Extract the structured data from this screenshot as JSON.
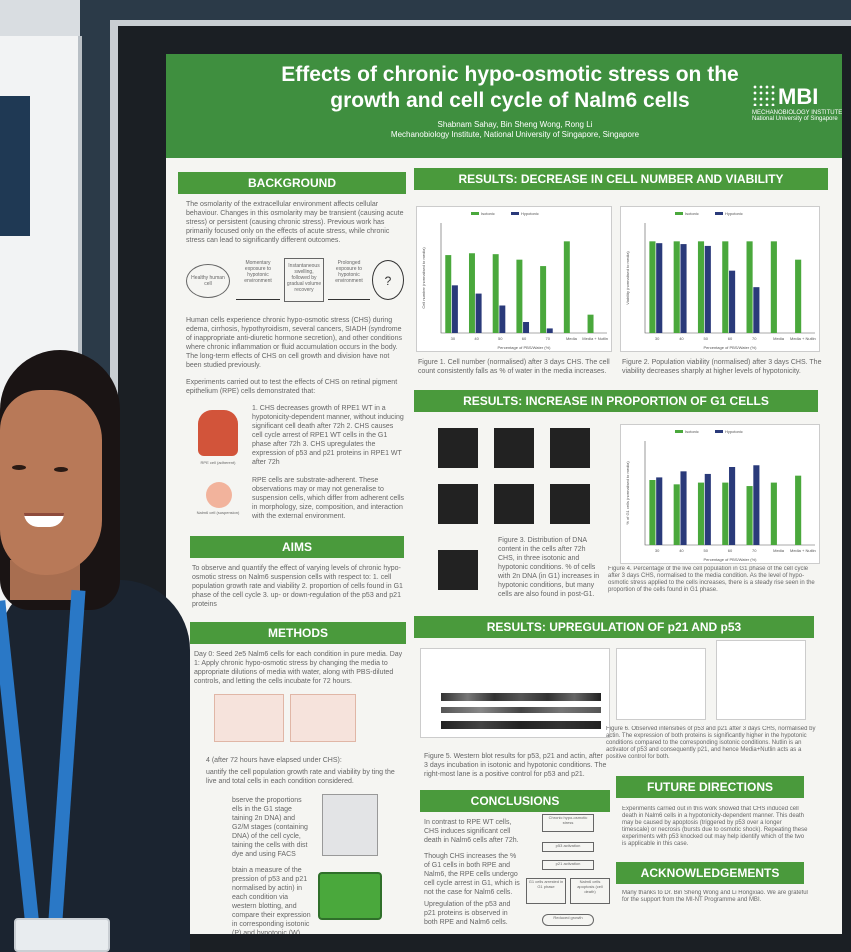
{
  "poster": {
    "title": "Effects of chronic hypo-osmotic stress on the growth and cell cycle of Nalm6 cells",
    "authors": "Shabnam Sahay, Bin Sheng Wong, Rong Li",
    "affiliation": "Mechanobiology Institute, National University of Singapore, Singapore",
    "logo": "MBI",
    "logo_subtitle": "MECHANOBIOLOGY INSTITUTE",
    "logo_university": "National University of Singapore",
    "colors": {
      "banner": "#3f8f3f",
      "header": "#4a9a3c",
      "poster_bg": "#f5f5f2",
      "bar_green": "#4aa83c",
      "bar_navy": "#2a3a7a"
    }
  },
  "sections": {
    "background": "BACKGROUND",
    "aims": "AIMS",
    "methods": "METHODS",
    "results1": "RESULTS: DECREASE IN CELL NUMBER AND VIABILITY",
    "results2": "RESULTS: INCREASE IN PROPORTION OF G1 CELLS",
    "results3": "RESULTS: UPREGULATION OF p21 AND p53",
    "conclusions": "CONCLUSIONS",
    "future": "FUTURE DIRECTIONS",
    "acknowledgements": "ACKNOWLEDGEMENTS"
  },
  "text": {
    "bg1": "The osmolarity of the extracellular environment affects cellular behaviour. Changes in this osmolarity may be transient (causing acute stress) or persistent (causing chronic stress). Previous work has primarily focused only on the effects of acute stress, while chronic stress can lead to significantly different outcomes.",
    "bg2": "Human cells experience chronic hypo-osmotic stress (CHS) during edema, cirrhosis, hypothyroidism, several cancers, SIADH (syndrome of inappropriate anti-diuretic hormone secretion), and other conditions where chronic inflammation or fluid accumulation occurs in the body. The long-term effects of CHS on cell growth and division have not been studied previously.",
    "bg3": "Experiments carried out to test the effects of CHS on retinal pigment epithelium (RPE) cells demonstrated that:",
    "bg_list": "1. CHS decreases growth of RPE1 WT in a hypotonicity-dependent manner, without inducing significant cell death after 72h 2. CHS causes cell cycle arrest of RPE1 WT cells in the G1 phase after 72h 3. CHS upregulates the expression of p53 and p21 proteins in RPE1 WT after 72h",
    "bg4": "RPE cells are substrate-adherent. These observations may or may not generalise to suspension cells, which differ from adherent cells in morphology, size, composition, and interaction with the external environment.",
    "aims": "To observe and quantify the effect of varying levels of chronic hypo-osmotic stress on Nalm6 suspension cells with respect to: 1. cell population growth rate and viability 2. proportion of cells found in G1 phase of the cell cycle 3. up- or down-regulation of the p53 and p21 proteins",
    "methods1": "Day 0: Seed 2e5 Nalm6 cells for each condition in pure media. Day 1: Apply chronic hypo-osmotic stress by changing the media to appropriate dilutions of media with water, along with PBS-diluted controls, and letting the cells incubate for 72 hours.",
    "methods2": "4 (after 72 hours have elapsed under CHS):",
    "methods3": "uantify the cell population growth rate and viability by ting the live and total cells in each condition considered.",
    "methods4": "bserve the proportions ells in the G1 stage taining 2n DNA) and G2/M stages (containing DNA) of the cell cycle, taining the cells with dist dye and using FACS antify the DNA present.",
    "methods5": "btain a measure of the pression of p53 and p21 normalised by actin) in each condition via western blotting, and compare their expression in corresponding isotonic (P) and hypotonic (W) extracellular conditions.",
    "fig1": "Figure 1. Cell number (normalised) after 3 days CHS. The cell count consistently falls as % of water in the media increases.",
    "fig2": "Figure 2. Population viability (normalised) after 3 days CHS. The viability decreases sharply at higher levels of hypotonicity.",
    "fig3": "Figure 3. Distribution of DNA content in the cells after 72h CHS, in three isotonic and hypotonic conditions. % of cells with 2n DNA (in G1) increases in hypotonic conditions, but many cells are also found in post-G1.",
    "fig4": "Figure 4. Percentage of the live cell population in G1 phase of the cell cycle after 3 days CHS, normalised to the media condition. As the level of hypo-osmotic stress applied to the cells increases, there is a steady rise seen in the proportion of the cells found in G1 phase.",
    "fig5": "Figure 5. Western blot results for p53, p21 and actin, after 3 days incubation in isotonic and hypotonic conditions. The right-most lane is a positive control for p53 and p21.",
    "fig6": "Figure 6. Observed intensities of p53 and p21 after 3 days CHS, normalised by actin. The expression of both proteins is significantly higher in the hypotonic conditions compared to the corresponding isotonic conditions. Nutlin is an activator of p53 and consequently p21, and hence Media+Nutlin acts as a positive control for both.",
    "concl1": "In contrast to RPE WT cells, CHS induces significant cell death in Nalm6 cells after 72h.",
    "concl2": "Though CHS increases the % of G1 cells in both RPE and Nalm6, the RPE cells undergo cell cycle arrest in G1, which is not the case for Nalm6 cells.",
    "concl3": "Upregulation of the p53 and p21 proteins is observed in both RPE and Nalm6 cells.",
    "future": "Experiments carried out in this work showed that CHS induced cell death in Nalm6 cells in a hypotonicity-dependent manner. This death may be caused by apoptosis (triggered by p53 over a longer timescale) or necrosis (bursts due to osmotic shock). Repeating these experiments with p53 knocked out may help identify which of the two is applicable in this case.",
    "ack": "Many thanks to Dr. Bin Sheng Wong and Li Hongxiao. We are grateful for the support from the MI-NT Programme and MBI."
  },
  "diagram": {
    "n1": "Healthy human cell",
    "n2": "Momentary exposure to hypotonic environment",
    "n3": "Instantaneous swelling, followed by gradual volume recovery",
    "n4": "Prolonged exposure to hypotonic environment",
    "n5": "?"
  },
  "cells": {
    "rpe": "RPE cell (adherent)",
    "nalm": "Nalm6 cell (suspension)"
  },
  "flow": [
    "Chronic hypo-osmotic stress",
    "p53 activation",
    "p21 activation",
    "G1 cells arrested in G1 phase",
    "Nalm6 cells apoptosis (cell death)",
    "Reduced growth"
  ],
  "chart_data": [
    {
      "type": "bar",
      "categories": [
        "30",
        "40",
        "50",
        "60",
        "70",
        "Media",
        "Media + Nutlin"
      ],
      "series": [
        {
          "name": "Isotonic",
          "values": [
            0.85,
            0.87,
            0.86,
            0.8,
            0.73,
            1.0,
            0.2
          ]
        },
        {
          "name": "Hypotonic",
          "values": [
            0.52,
            0.43,
            0.3,
            0.12,
            0.05,
            null,
            null
          ]
        }
      ],
      "xlabel": "Percentage of PBS/Water (%)",
      "ylabel": "Cell number (normalised to media)",
      "ylim": [
        0,
        1.2
      ]
    },
    {
      "type": "bar",
      "categories": [
        "30",
        "40",
        "50",
        "60",
        "70",
        "Media",
        "Media + Nutlin"
      ],
      "series": [
        {
          "name": "Isotonic",
          "values": [
            1.0,
            1.0,
            1.0,
            1.0,
            1.0,
            1.0,
            0.8
          ]
        },
        {
          "name": "Hypotonic",
          "values": [
            0.98,
            0.97,
            0.95,
            0.68,
            0.5,
            null,
            null
          ]
        }
      ],
      "xlabel": "Percentage of PBS/Water (%)",
      "ylabel": "Viability (normalised to media)",
      "ylim": [
        0,
        1.2
      ]
    },
    {
      "type": "bar",
      "categories": [
        "30",
        "40",
        "50",
        "60",
        "70",
        "Media",
        "Media + Nutlin"
      ],
      "series": [
        {
          "name": "Isotonic",
          "values": [
            0.75,
            0.7,
            0.72,
            0.72,
            0.68,
            0.72,
            0.8
          ]
        },
        {
          "name": "Hypotonic",
          "values": [
            0.78,
            0.85,
            0.82,
            0.9,
            0.92,
            null,
            null
          ]
        }
      ],
      "xlabel": "Percentage of PBS/Water (%)",
      "ylabel": "% of G1 cells (normalised to media)",
      "ylim": [
        0,
        1.2
      ]
    }
  ]
}
